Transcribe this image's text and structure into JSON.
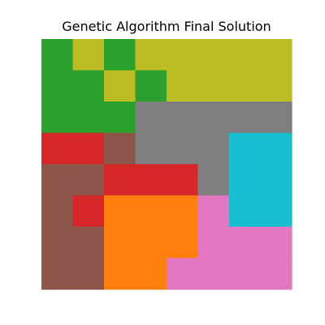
{
  "chart_data": {
    "type": "heatmap",
    "title": "Genetic Algorithm Final Solution",
    "xlabel": "",
    "ylabel": "",
    "axes_visible": false,
    "grid": false,
    "legend": "none",
    "rows": 8,
    "cols": 8,
    "palette": {
      "0": "#2ca02c",
      "1": "#bcbd22",
      "2": "#7f7f7f",
      "3": "#d62728",
      "4": "#8c564b",
      "5": "#17becf",
      "6": "#ff7f0e",
      "7": "#e377c2"
    },
    "cells": [
      [
        0,
        1,
        0,
        1,
        1,
        1,
        1,
        1
      ],
      [
        0,
        0,
        1,
        0,
        1,
        1,
        1,
        1
      ],
      [
        0,
        0,
        0,
        2,
        2,
        2,
        2,
        2
      ],
      [
        3,
        3,
        4,
        2,
        2,
        2,
        5,
        5
      ],
      [
        4,
        4,
        3,
        3,
        3,
        2,
        5,
        5
      ],
      [
        4,
        3,
        6,
        6,
        6,
        7,
        5,
        5
      ],
      [
        4,
        4,
        6,
        6,
        6,
        7,
        7,
        7
      ],
      [
        4,
        4,
        6,
        6,
        7,
        7,
        7,
        7
      ]
    ]
  }
}
